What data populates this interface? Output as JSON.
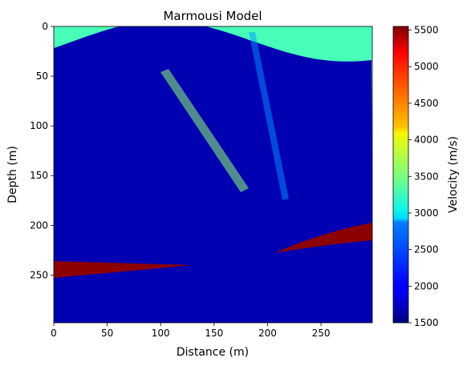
{
  "chart_data": {
    "type": "heatmap",
    "title": "Marmousi Model",
    "xlabel": "Distance (m)",
    "ylabel": "Depth (m)",
    "xlim": [
      0,
      298
    ],
    "ylim": [
      298,
      0
    ],
    "x_ticks": [
      0,
      50,
      100,
      150,
      200,
      250
    ],
    "y_ticks": [
      0,
      50,
      100,
      150,
      200,
      250
    ],
    "colormap": "jet",
    "colorbar": {
      "label": "Velocity (m/s)",
      "min": 1500,
      "max": 5550,
      "ticks": [
        1500,
        2000,
        2500,
        3000,
        3500,
        4000,
        4500,
        5000,
        5500
      ]
    },
    "grid": false
  }
}
